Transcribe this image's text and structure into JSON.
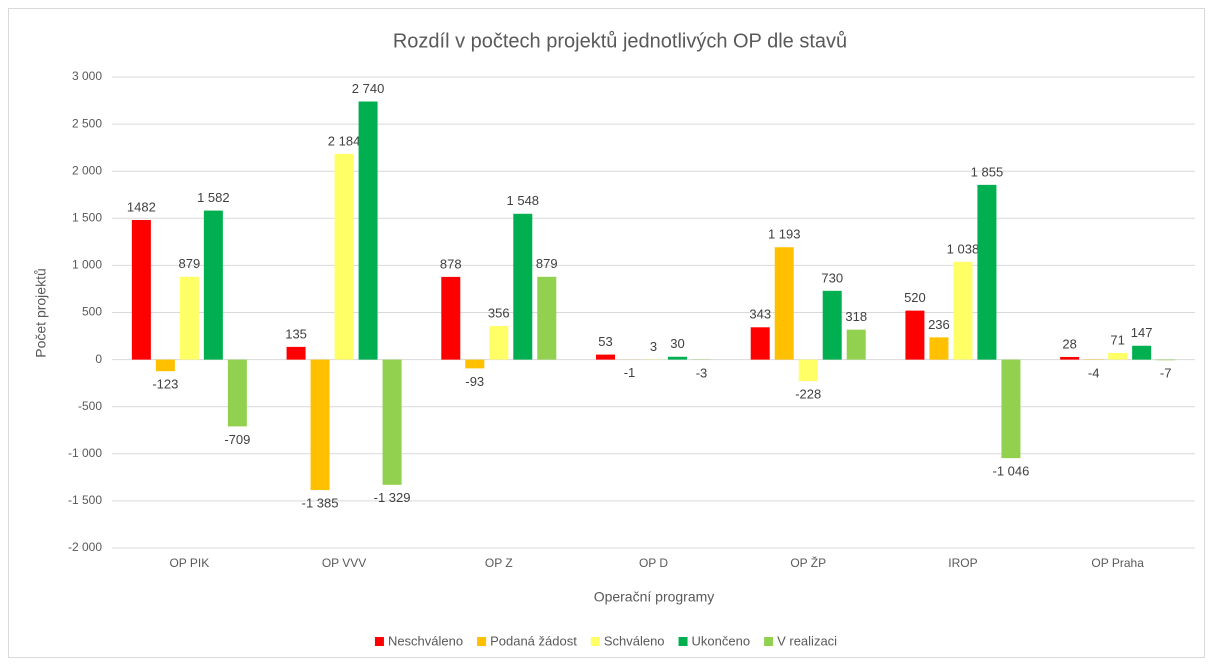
{
  "chart_data": {
    "type": "bar",
    "title": "Rozdíl v počtech projektů jednotlivých OP dle stavů",
    "x_label": "Operační programy",
    "y_label": "Počet projektů",
    "categories": [
      "OP PIK",
      "OP VVV",
      "OP Z",
      "OP D",
      "OP ŽP",
      "IROP",
      "OP Praha"
    ],
    "series": [
      {
        "name": "Neschváleno",
        "color": "#ff0000",
        "values": [
          1482,
          135,
          878,
          53,
          343,
          520,
          28
        ],
        "value_labels": [
          "1482",
          "135",
          "878",
          "53",
          "343",
          "520",
          "28"
        ]
      },
      {
        "name": "Podaná žádost",
        "color": "#ffc000",
        "values": [
          -123,
          -1385,
          -93,
          -1,
          1193,
          236,
          -4
        ],
        "value_labels": [
          "-123",
          "-1 385",
          "-93",
          "-1",
          "1 193",
          "236",
          "-4"
        ]
      },
      {
        "name": "Schváleno",
        "color": "#ffff66",
        "values": [
          879,
          2184,
          356,
          3,
          -228,
          1038,
          71
        ],
        "value_labels": [
          "879",
          "2 184",
          "356",
          "3",
          "-228",
          "1 038",
          "71"
        ]
      },
      {
        "name": "Ukončeno",
        "color": "#00b050",
        "values": [
          1582,
          2740,
          1548,
          30,
          730,
          1855,
          147
        ],
        "value_labels": [
          "1 582",
          "2 740",
          "1 548",
          "30",
          "730",
          "1 855",
          "147"
        ]
      },
      {
        "name": "V realizaci",
        "color": "#92d050",
        "values": [
          -709,
          -1329,
          879,
          -3,
          318,
          -1046,
          -7
        ],
        "value_labels": [
          "-709",
          "-1 329",
          "879",
          "-3",
          "318",
          "-1 046",
          "-7"
        ]
      }
    ],
    "ylim": [
      -2000,
      3000
    ],
    "yticks": [
      {
        "value": -2000,
        "label": "-2 000"
      },
      {
        "value": -1500,
        "label": "-1 500"
      },
      {
        "value": -1000,
        "label": "-1 000"
      },
      -500,
      0,
      500,
      {
        "value": 1000,
        "label": "1 000"
      },
      {
        "value": 1500,
        "label": "1 500"
      },
      {
        "value": 2000,
        "label": "2 000"
      },
      {
        "value": 2500,
        "label": "2 500"
      },
      {
        "value": 3000,
        "label": "3 000"
      }
    ],
    "grid": true,
    "legend": "bottom"
  }
}
